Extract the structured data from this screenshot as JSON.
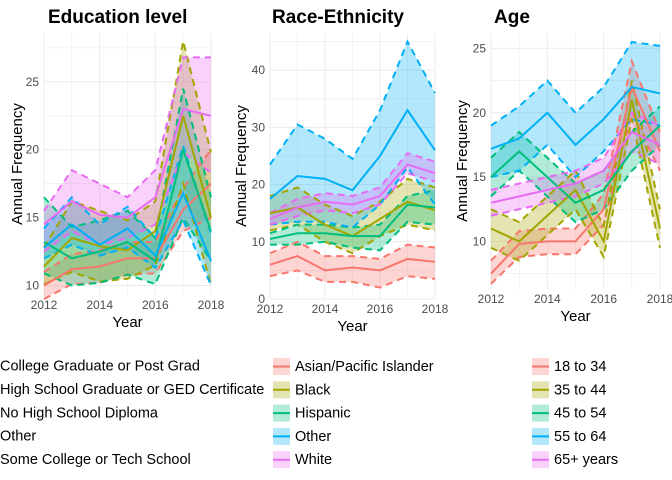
{
  "chart_data": [
    {
      "type": "line",
      "title": "Education level",
      "xlabel": "Year",
      "ylabel": "Annual Frequency",
      "x": [
        2012,
        2013,
        2014,
        2015,
        2016,
        2017,
        2018
      ],
      "xticks": [
        2012,
        2014,
        2016,
        2018
      ],
      "xlim": [
        2012,
        2018
      ],
      "ylim": [
        9.3,
        28.6
      ],
      "yticks": [
        10,
        15,
        20,
        25
      ],
      "grid": true,
      "ribbons": true,
      "series": [
        {
          "name": "College Graduate or Post Grad",
          "color": "#F8766D",
          "values": [
            10.0,
            11.2,
            11.4,
            12.0,
            12.0,
            15.6,
            17.5
          ],
          "lower": [
            9.0,
            10.1,
            10.2,
            10.8,
            10.9,
            14.0,
            15.0
          ],
          "upper": [
            11.0,
            12.3,
            12.6,
            13.2,
            13.2,
            17.2,
            20.0
          ]
        },
        {
          "name": "High School Graduate or GED Certificate",
          "color": "#A3A500",
          "values": [
            11.4,
            13.5,
            12.9,
            12.6,
            14.0,
            22.5,
            15.0
          ],
          "lower": [
            10.1,
            11.0,
            10.3,
            10.5,
            11.5,
            17.5,
            10.0
          ],
          "upper": [
            12.8,
            16.2,
            15.5,
            14.8,
            16.2,
            28.0,
            19.8
          ]
        },
        {
          "name": "No High School Diploma",
          "color": "#00BF7D",
          "values": [
            13.2,
            12.0,
            12.5,
            13.2,
            11.8,
            20.0,
            14.0
          ],
          "lower": [
            10.9,
            10.0,
            10.2,
            10.8,
            10.1,
            15.0,
            11.8
          ],
          "upper": [
            16.5,
            14.3,
            14.8,
            15.5,
            13.5,
            24.5,
            16.5
          ]
        },
        {
          "name": "Other",
          "color": "#00B0F6",
          "values": [
            12.8,
            14.5,
            13.0,
            14.2,
            12.2,
            16.8,
            11.8
          ],
          "lower": [
            12.0,
            13.0,
            12.2,
            12.8,
            11.3,
            14.8,
            10.0
          ],
          "upper": [
            14.2,
            16.5,
            14.5,
            15.8,
            13.5,
            20.3,
            13.8
          ]
        },
        {
          "name": "Some College or Tech School",
          "color": "#E76BF3",
          "values": [
            14.5,
            16.2,
            15.2,
            15.0,
            16.5,
            23.0,
            22.5
          ],
          "lower": [
            12.5,
            14.0,
            13.0,
            13.5,
            14.5,
            19.8,
            18.3
          ],
          "upper": [
            15.5,
            18.5,
            17.5,
            16.5,
            18.5,
            26.8,
            26.8
          ]
        }
      ]
    },
    {
      "type": "line",
      "title": "Race-Ethnicity",
      "xlabel": "Year",
      "ylabel": "Annual Frequency",
      "x": [
        2012,
        2013,
        2014,
        2015,
        2016,
        2017,
        2018
      ],
      "xticks": [
        2012,
        2014,
        2016,
        2018
      ],
      "xlim": [
        2012,
        2018
      ],
      "ylim": [
        0,
        46.5
      ],
      "yticks": [
        0,
        10,
        20,
        30,
        40
      ],
      "grid": true,
      "ribbons": true,
      "series": [
        {
          "name": "Asian/Pacific Islander",
          "color": "#F8766D",
          "values": [
            6.0,
            7.5,
            5.0,
            5.5,
            5.0,
            7.0,
            6.5
          ],
          "lower": [
            4.0,
            5.0,
            3.0,
            3.0,
            2.0,
            4.0,
            3.5
          ],
          "upper": [
            8.0,
            10.0,
            7.5,
            7.5,
            7.0,
            9.5,
            9.0
          ]
        },
        {
          "name": "Black",
          "color": "#A3A500",
          "values": [
            15.0,
            16.0,
            13.0,
            11.0,
            14.0,
            17.0,
            15.5
          ],
          "lower": [
            12.0,
            13.0,
            10.0,
            8.0,
            11.0,
            13.0,
            12.0
          ],
          "upper": [
            18.0,
            19.5,
            16.5,
            14.5,
            17.0,
            21.0,
            19.5
          ]
        },
        {
          "name": "Hispanic",
          "color": "#00BF7D",
          "values": [
            10.5,
            11.5,
            11.5,
            11.0,
            11.0,
            16.5,
            16.0
          ],
          "lower": [
            9.5,
            9.5,
            10.0,
            9.0,
            8.5,
            13.5,
            13.0
          ],
          "upper": [
            11.5,
            13.0,
            13.0,
            12.5,
            13.0,
            18.0,
            19.0
          ]
        },
        {
          "name": "Other",
          "color": "#00B0F6",
          "values": [
            17.5,
            21.5,
            21.0,
            19.0,
            25.0,
            33.0,
            26.0
          ],
          "lower": [
            13.0,
            13.5,
            13.5,
            12.5,
            16.5,
            23.0,
            16.5
          ],
          "upper": [
            23.5,
            30.5,
            28.0,
            24.5,
            33.0,
            45.0,
            36.0
          ]
        },
        {
          "name": "White",
          "color": "#E76BF3",
          "values": [
            14.0,
            16.0,
            17.0,
            16.5,
            18.0,
            23.5,
            22.0
          ],
          "lower": [
            13.0,
            14.5,
            15.5,
            15.0,
            16.5,
            22.0,
            20.5
          ],
          "upper": [
            15.0,
            17.5,
            18.5,
            18.0,
            19.5,
            25.5,
            24.0
          ]
        }
      ]
    },
    {
      "type": "line",
      "title": "Age",
      "xlabel": "Year",
      "ylabel": "Annual Frequency",
      "x": [
        2012,
        2013,
        2014,
        2015,
        2016,
        2017,
        2018
      ],
      "xticks": [
        2012,
        2014,
        2016,
        2018
      ],
      "xlim": [
        2012,
        2018
      ],
      "ylim": [
        6.3,
        26.2
      ],
      "yticks": [
        10,
        15,
        20,
        25
      ],
      "grid": true,
      "ribbons": true,
      "series": [
        {
          "name": "18 to 34",
          "color": "#F8766D",
          "values": [
            7.5,
            9.8,
            10.0,
            10.0,
            12.5,
            22.0,
            17.0
          ],
          "lower": [
            6.7,
            8.8,
            9.0,
            9.0,
            11.3,
            20.0,
            15.5
          ],
          "upper": [
            8.5,
            10.8,
            11.0,
            11.0,
            13.7,
            24.0,
            18.5
          ]
        },
        {
          "name": "35 to 44",
          "color": "#A3A500",
          "values": [
            11.0,
            10.0,
            12.0,
            14.0,
            10.0,
            21.0,
            11.0
          ],
          "lower": [
            9.5,
            8.5,
            10.5,
            12.5,
            8.8,
            19.5,
            9.5
          ],
          "upper": [
            12.5,
            11.5,
            13.5,
            15.5,
            11.2,
            22.5,
            12.5
          ]
        },
        {
          "name": "45 to 54",
          "color": "#00BF7D",
          "values": [
            15.0,
            17.0,
            15.0,
            13.0,
            14.0,
            17.0,
            19.0
          ],
          "lower": [
            13.5,
            15.5,
            13.5,
            11.5,
            12.5,
            15.5,
            17.5
          ],
          "upper": [
            16.5,
            18.5,
            16.5,
            14.5,
            15.5,
            18.5,
            20.5
          ]
        },
        {
          "name": "55 to 64",
          "color": "#00B0F6",
          "values": [
            17.2,
            18.0,
            20.0,
            17.5,
            19.5,
            22.0,
            21.5
          ],
          "lower": [
            15.0,
            15.5,
            17.5,
            15.0,
            17.0,
            19.5,
            19.0
          ],
          "upper": [
            19.0,
            20.5,
            22.5,
            20.0,
            22.0,
            25.5,
            25.2
          ]
        },
        {
          "name": "65+ years",
          "color": "#E76BF3",
          "values": [
            13.0,
            13.5,
            14.0,
            14.5,
            15.5,
            18.5,
            17.5
          ],
          "lower": [
            12.0,
            12.5,
            13.0,
            13.5,
            14.5,
            17.0,
            16.0
          ],
          "upper": [
            14.0,
            14.5,
            15.0,
            15.5,
            16.5,
            20.0,
            19.0
          ]
        }
      ]
    }
  ]
}
